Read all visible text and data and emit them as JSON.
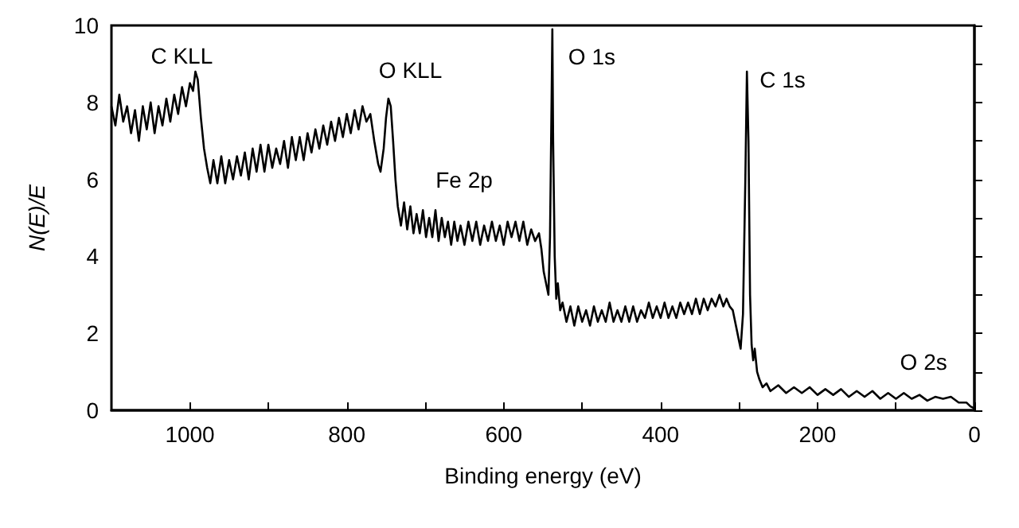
{
  "chart_data": {
    "type": "line",
    "xlabel": "Binding energy (eV)",
    "ylabel": "N(E)/E",
    "xlim": [
      1100,
      0
    ],
    "ylim": [
      0,
      10
    ],
    "xticks": [
      0,
      {
        "value": 100,
        "label": null
      },
      200,
      {
        "value": 300,
        "label": null
      },
      400,
      {
        "value": 500,
        "label": null
      },
      600,
      {
        "value": 700,
        "label": null
      },
      800,
      {
        "value": 900,
        "label": null
      },
      1000
    ],
    "yticks": [
      0,
      {
        "value": 1,
        "label": null
      },
      2,
      {
        "value": 3,
        "label": null
      },
      4,
      {
        "value": 5,
        "label": null
      },
      6,
      {
        "value": 7,
        "label": null
      },
      8,
      {
        "value": 9,
        "label": null
      },
      10
    ],
    "grid": false,
    "marker": "none",
    "line_style": "solid",
    "annotations": [
      {
        "text": "C KLL",
        "x": 993,
        "y": 8.8
      },
      {
        "text": "O KLL",
        "x": 747,
        "y": 8.1
      },
      {
        "text": "Fe 2p",
        "x": 703,
        "y": 5.2
      },
      {
        "text": "O 1s",
        "x": 538,
        "y": 9.9
      },
      {
        "text": "C 1s",
        "x": 290,
        "y": 8.8
      },
      {
        "text": "O 2s",
        "x": 40,
        "y": 0.3
      }
    ],
    "series": [
      {
        "color": "#000000",
        "x": [
          1100,
          1095,
          1090,
          1085,
          1080,
          1075,
          1070,
          1065,
          1060,
          1055,
          1050,
          1045,
          1040,
          1035,
          1030,
          1025,
          1020,
          1015,
          1010,
          1005,
          1000,
          996,
          993,
          990,
          986,
          982,
          978,
          974,
          970,
          965,
          960,
          955,
          950,
          945,
          940,
          935,
          930,
          925,
          920,
          915,
          910,
          905,
          900,
          895,
          890,
          885,
          880,
          875,
          870,
          865,
          860,
          855,
          850,
          845,
          840,
          835,
          830,
          825,
          820,
          815,
          810,
          805,
          800,
          795,
          790,
          785,
          780,
          775,
          770,
          765,
          760,
          757,
          753,
          750,
          747,
          744,
          741,
          738,
          735,
          731,
          727,
          723,
          719,
          715,
          711,
          707,
          703,
          699,
          695,
          691,
          687,
          683,
          679,
          675,
          671,
          667,
          663,
          659,
          655,
          650,
          645,
          640,
          635,
          630,
          625,
          620,
          615,
          610,
          605,
          600,
          595,
          590,
          585,
          580,
          575,
          570,
          565,
          560,
          555,
          552,
          549,
          546,
          543,
          541,
          539,
          538,
          537,
          535,
          533,
          531,
          528,
          525,
          520,
          515,
          510,
          505,
          500,
          495,
          490,
          485,
          480,
          475,
          470,
          465,
          460,
          455,
          450,
          445,
          440,
          435,
          430,
          425,
          420,
          415,
          410,
          405,
          400,
          395,
          390,
          385,
          380,
          375,
          370,
          365,
          360,
          355,
          350,
          345,
          340,
          335,
          330,
          325,
          320,
          316,
          312,
          308,
          304,
          300,
          298,
          295,
          292,
          290,
          288,
          286,
          284,
          282,
          280,
          277,
          274,
          270,
          265,
          260,
          250,
          240,
          230,
          220,
          210,
          200,
          190,
          180,
          170,
          160,
          150,
          140,
          130,
          120,
          110,
          100,
          90,
          80,
          70,
          60,
          50,
          40,
          30,
          20,
          10,
          5,
          0
        ],
        "values": [
          7.9,
          7.4,
          8.2,
          7.5,
          7.9,
          7.2,
          7.8,
          7.0,
          7.9,
          7.3,
          8.0,
          7.2,
          7.9,
          7.4,
          8.1,
          7.5,
          8.2,
          7.7,
          8.4,
          7.9,
          8.5,
          8.3,
          8.8,
          8.6,
          7.6,
          6.8,
          6.3,
          5.9,
          6.5,
          5.9,
          6.6,
          5.9,
          6.5,
          6.0,
          6.6,
          6.1,
          6.7,
          6.0,
          6.8,
          6.2,
          6.9,
          6.2,
          6.9,
          6.3,
          6.8,
          6.4,
          7.0,
          6.3,
          7.1,
          6.5,
          7.1,
          6.5,
          7.2,
          6.7,
          7.3,
          6.8,
          7.4,
          6.9,
          7.5,
          7.0,
          7.6,
          7.1,
          7.7,
          7.2,
          7.8,
          7.3,
          7.9,
          7.5,
          7.7,
          7.0,
          6.4,
          6.2,
          6.8,
          7.6,
          8.1,
          7.9,
          7.0,
          6.0,
          5.3,
          4.8,
          5.4,
          4.7,
          5.3,
          4.6,
          5.1,
          4.6,
          5.2,
          4.5,
          5.0,
          4.5,
          5.2,
          4.4,
          5.0,
          4.5,
          4.9,
          4.3,
          4.9,
          4.4,
          4.8,
          4.3,
          4.9,
          4.4,
          4.9,
          4.3,
          4.8,
          4.4,
          4.9,
          4.4,
          4.8,
          4.3,
          4.9,
          4.5,
          4.9,
          4.4,
          4.9,
          4.3,
          4.7,
          4.4,
          4.6,
          4.2,
          3.6,
          3.3,
          3.0,
          4.5,
          8.0,
          9.9,
          7.0,
          4.0,
          2.9,
          3.3,
          2.6,
          2.8,
          2.3,
          2.7,
          2.2,
          2.7,
          2.3,
          2.6,
          2.2,
          2.7,
          2.3,
          2.6,
          2.3,
          2.8,
          2.3,
          2.6,
          2.3,
          2.7,
          2.3,
          2.7,
          2.3,
          2.6,
          2.4,
          2.8,
          2.4,
          2.7,
          2.4,
          2.8,
          2.4,
          2.7,
          2.4,
          2.8,
          2.5,
          2.8,
          2.5,
          2.9,
          2.5,
          2.9,
          2.6,
          2.9,
          2.7,
          3.0,
          2.7,
          2.9,
          2.7,
          2.6,
          2.2,
          1.8,
          1.6,
          2.5,
          6.0,
          8.8,
          7.0,
          3.0,
          1.7,
          1.3,
          1.6,
          1.0,
          0.8,
          0.6,
          0.7,
          0.5,
          0.65,
          0.45,
          0.6,
          0.45,
          0.6,
          0.4,
          0.55,
          0.4,
          0.55,
          0.35,
          0.5,
          0.35,
          0.5,
          0.3,
          0.45,
          0.3,
          0.45,
          0.3,
          0.4,
          0.25,
          0.35,
          0.3,
          0.35,
          0.2,
          0.2,
          0.1,
          0.05
        ]
      }
    ]
  }
}
